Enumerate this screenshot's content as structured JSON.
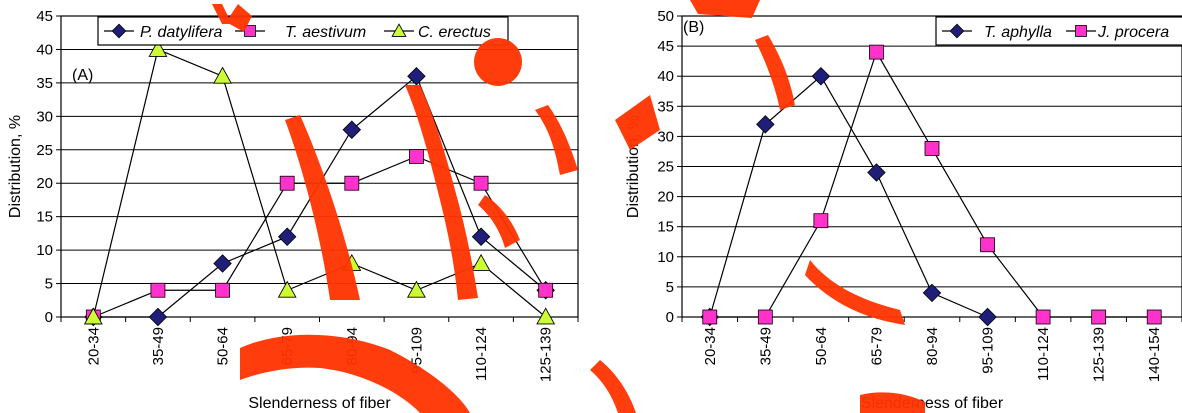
{
  "chart_data": [
    {
      "type": "line",
      "panel_label": "(A)",
      "xlabel": "Slenderness of fiber",
      "ylabel": "Distribution, %",
      "ylim": [
        0,
        45
      ],
      "yticks": [
        0,
        5,
        10,
        15,
        20,
        25,
        30,
        35,
        40,
        45
      ],
      "grid": "horizontal",
      "legend": "top",
      "categories": [
        "20-34",
        "35-49",
        "50-64",
        "65-79",
        "80-94",
        "95-109",
        "110-124",
        "125-139"
      ],
      "series": [
        {
          "name": "P. datylifera",
          "marker": "diamond",
          "color": "#1f1f7a",
          "values": [
            0,
            0,
            8,
            12,
            28,
            36,
            12,
            4
          ]
        },
        {
          "name": "T. aestivum",
          "marker": "square",
          "color": "#ff33cc",
          "values": [
            0,
            4,
            4,
            20,
            20,
            24,
            20,
            4
          ]
        },
        {
          "name": "C. erectus",
          "marker": "triangle",
          "color": "#ccff33",
          "values": [
            0,
            40,
            36,
            4,
            8,
            4,
            8,
            0
          ]
        }
      ]
    },
    {
      "type": "line",
      "panel_label": "(B)",
      "xlabel": "Slenderness of fiber",
      "ylabel": "Distribution, %",
      "ylim": [
        0,
        50
      ],
      "yticks": [
        0,
        5,
        10,
        15,
        20,
        25,
        30,
        35,
        40,
        45,
        50
      ],
      "grid": "horizontal",
      "legend": "top-right",
      "categories": [
        "20-34",
        "35-49",
        "50-64",
        "65-79",
        "80-94",
        "95-109",
        "110-124",
        "125-139",
        "140-154"
      ],
      "series": [
        {
          "name": "T. aphylla",
          "marker": "diamond",
          "color": "#1f1f7a",
          "values": [
            0,
            32,
            40,
            24,
            4,
            0,
            null,
            null,
            null
          ]
        },
        {
          "name": "J. procera",
          "marker": "square",
          "color": "#ff33cc",
          "values": [
            0,
            0,
            16,
            44,
            28,
            12,
            0,
            0,
            0
          ]
        }
      ]
    }
  ],
  "watermark": {
    "color": "#ff3300"
  }
}
